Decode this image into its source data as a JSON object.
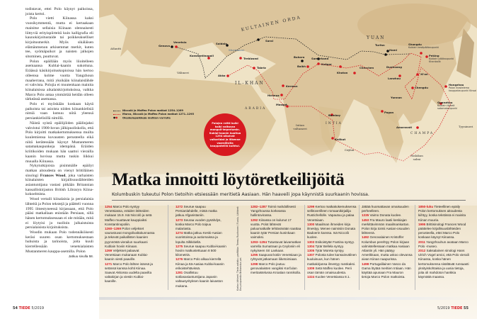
{
  "left_page": {
    "paragraphs": [
      "todistavat, ettei Polo käynyt paikoissa, joista kertoi.",
      "Polo vietti Kiinassa kaksi vuosikymmentä, mutta ei kertaakaan mainitse sellaisia Kiinaan olennaisesti liittyviä erityispiirteitä kuin kalligrafia eli kaunokirjoitustaide tai poikkeukselliset kirjoitusmerkit. Myös sikäläisen elämänmenon arkisemmat merkit, kuten tee, syömäpuikot ja naisten jalkojen sitominen, puuttuvat.",
      "Polon epäillään myös liioitelleen asemaansa Kublai-kaanin sukottuna. Eräässä käsikirjoituskopioissa hän kertoo olleensa kolme vuotta Yangzhoun maaherrana, mitä yksikään kiinalaislähde ei vahvista. Polojia ei muutenkaan mainita kiinalaisissa aikalaiskirjoituksissa, vaikka Marco Polo antaa ymmärtää heidän olleen tärkeässä asemassa.",
      "Polo ei myöskään koskaan käytä paikoista tai asioista niiden kiinankielisiä nimiä vaan kutsuu niitä yleensä persiankielisillä nimillä.",
      "Näistä syistä epäilijöiden päälinjaksi vahvistui 1900-luvun jälkipuoliskolla, että Polo kirjoitti matkakertomuksensa muilta kuulemiensa kuvausten perusteella eikä niitä kerätessään käynyt Mustanmeren satamakaupunkeja idempänä. Eräiden kriitikoiden mukaan hän saattoi vierailla kaanin hovissa mutta tuskin liikkui muualla Kiinassa."
    ],
    "para_wood_pre": "Nykytutkijoista pisimmälle epäilyt matkan aitoudesta on vienyt brittiläinen sinologi ",
    "para_wood_name": "Frances Wood",
    "para_wood_post": ", joka varhaisten kiinalaisten kirjallisuuslähteiden asiantuntijana vastasi pitkään Britannian kansalliskirjaston British Libraryn Kiina-kokoelmista.",
    "paragraphs2": [
      "Wood vertaili kiinalaisia ja persialaisia lähteitä ja Polon tekstejä ja päätteli vuonna 1995 ilmestyneessä kirjassaan, että Polo pääsi matkallaan enintään Persiaan, sillä hänen kertomuksessaan ei ole mitään, mitä ei löytyisi jo tuolloin julkaistuista persialaisista kirjoituksista.",
      "Woodin mukaan Polo todennäköisesti keräsi suuren osan kertomuksestaan huhuista ja tarinoista, joita kuuli kierrellessään venetsialaisten Mustanmeren kauppa-asemilla. Polon"
    ],
    "continued": "Jatkuu sivulla 58.",
    "footer_page": "54",
    "footer_brand": "TIEDE",
    "footer_issue": "5/2019"
  },
  "map": {
    "regions": {
      "orda": "KULTAINEN ORDA",
      "ilkhan": "IL-KHAN",
      "yuan": "YUAN",
      "arabia": "ARABIA",
      "intia": "INTIA",
      "champa": "CHAMPA"
    },
    "seas": {
      "atlantti": "Atlantti",
      "valimeri": "Välimeri",
      "mustameri": "Mustameri",
      "intian": "Intian valtameri",
      "tyynimeri": "Tyynimeri",
      "malakan": "Malakan salmi"
    },
    "cities": {
      "genova": "Genova",
      "venetsia": "Venetsia",
      "soldaia": "Soldaia",
      "konstantinopoli": "Konstantinopoli",
      "trebizond": "Trebizond",
      "tabriz": "Tabriz",
      "akko": "Akko",
      "sarai": "Sarai",
      "buhara": "Buhara",
      "samarkand": "Samarkand",
      "balkh": "Balkh",
      "kasgar": "Kašgar",
      "khotan": "Khotan",
      "cherchen": "Cherchen",
      "dunhuang": "Dunhuang",
      "lanzhou": "Lanzhou",
      "turfan": "Turfan",
      "hami": "Hami",
      "kerman": "Kerman",
      "hormuz": "Hormuz",
      "masqat": "Masqat",
      "bombay": "Bombay",
      "kalikut": "Kalikut",
      "ceylon": "Ceylon",
      "pagan": "Pagan",
      "yunnan": "Yunnan",
      "chengdu": "Chengdu",
      "xian": "Xi'an",
      "amaravati": "Amaravati",
      "shangdu": "Shangdu",
      "shangdu_sub": "Kublain kesäpääkaupunki",
      "peking": "Peking",
      "peking_sub": "Kublain pääkaupunki Khanbalik",
      "hangzhou": "Hangzhou",
      "hangzhou_sub": "Polon ihastelema kauppakaupunki Kinsai",
      "quanzhou": "Quanzhou",
      "quanzhou_sub": "Kublain tärkeä satamakaupunki"
    },
    "legend": [
      "Niccolò ja Maffeo Polon matkat 1254–1269",
      "Marco, Niccolò ja Maffeo Polon matkat 1271–1295",
      "Oleskelupaikkoja matkan varrella"
    ],
    "callout": "Polojen reitti kulki halki valtavan mongoli-imperiumin. Kublai-kaanin kuoltua 1294 alkoivat valtariidat ja liikenne vaarallisilla kauppateillä kuihtui.",
    "colors": {
      "route_red": "#d71920",
      "route_black": "#222222",
      "land": "#d8c094",
      "sea": "#efe3c6"
    }
  },
  "headline": "Matka innoitti löytöretkeilijöitä",
  "subhead": "Kolumbuskin tukeutui Polon tietoihin etsiessään meritietä Aasiaan. Hän haaveili jopa käynnistä suurkaanin hovissa.",
  "credit": "Kartan lähteet: Tiede-arkisto; grafiikka: Teemu Ruohonen / Fundu. Lähteet: Encyclopaedia Britannica ym.",
  "timeline": [
    [
      {
        "y": "1254",
        "t": "Marco Polo syntyy Venetsiassa, eräiden lähteiden mukaan 15.9. Isä Niccolò ja setä Maffeo muuttavat kauppiaiksi Konstantinopoliin."
      },
      {
        "y": "1260–1269",
        "t": "Polon veljekset vaurastuvat mongolivaltakunnassa ja tekevät paikallisten kaanien pyynnöstä vierailun suurkaani Kublain hoviin Kiinaan."
      },
      {
        "y": "1269",
        "t": "Veljekset palaavat Venetsiaan mukanaan Kublai-kaanin viesti paaville."
      },
      {
        "y": "1271",
        "t": "Marco Polo lähtee isänsä ja setänsä kanssa kohti Kiinaa. Saavat Akkossa uudelta paavilta valtakirjan ja viestin Kublai-kaanille."
      }
    ],
    [
      {
        "y": "1272",
        "t": "Seurue saapuu Persianlahdelle, mistä matka jatkuu Afganistaniin."
      },
      {
        "y": "1273",
        "t": "Seuraa vuoden pysähdys, koska Marco Polo toipuu malariasta."
      },
      {
        "y": "1274",
        "t": "Matka jatkuu Keski-Aasian vuoristoissa ja autiomaissa ja lopulta Silkkitiellä."
      },
      {
        "y": "1275",
        "t": "Seurue saapuu Kublai-kaanin hoviin matkustettuaan 8 500 kilometriä."
      },
      {
        "y": "1276",
        "t": "Marco Polo alkaa kierrellä Kiinaa ja Itä-Aasiaa Kublai-kaanin erikoistehtävissä."
      },
      {
        "y": "1281",
        "t": "Osallistuu sotilasasiantuntijana Japanin valtausyrityksen kaanin laivaston mukana."
      }
    ],
    [
      {
        "y": "1282–1287",
        "t": "Toimii mahdollisesti Yangzhoussa korkeassa hallintovirassa."
      },
      {
        "y": "1292",
        "t": "Kiinassa on kulunut 17 vuotta. Polot lähtevät paluumatkalle tehtävänään saattaa kaanin tytär Persian kuninkaan vaimoksi."
      },
      {
        "y": "1293–1294",
        "t": "Tutustuvat laivamatkan varrella Sumatraan ja Ceyloniin eli nykyiseen Sri Lankaan."
      },
      {
        "y": "1295",
        "t": "Saapuvat kotiin Venetsiaan ja ryhtyvät jatkamaan liiketoimiaan."
      },
      {
        "y": "1298",
        "t": "Marco Polo joutuu genovalaisten vangiksi Korčulan meritaistelussa Kroatian rannikolla."
      }
    ],
    [
      {
        "y": "1299",
        "t": "Kertoo matkakokemuksensa sellitoverilleen romaanikirjailija Rustichellolle. Vapautuu ja palaa Venetsiaan."
      },
      {
        "y": "1300",
        "t": "Maailman ihmeiden kirja ilmestyy. Menee naimisiin Donata Badoerin kanssa. Isä Niccolò kuolee."
      },
      {
        "y": "1303",
        "t": "Esikoistytär Fantina syntyy."
      },
      {
        "y": "1304",
        "t": "Tytär Bellela syntyy."
      },
      {
        "y": "1305",
        "t": "Tytär Moreta syntyy."
      },
      {
        "y": "1307",
        "t": "Polosta tulee kansainvälinen kuuluisuus, kun hänen matkakirjansa ilmestyy ranskaksi."
      },
      {
        "y": "1309",
        "t": "Setä Maffeo kuolee. Perii osan tämän omaisuudesta."
      },
      {
        "y": "1324",
        "t": "Kuolee Venetsiassa 8.1."
      }
    ],
    [
      {
        "y": "",
        "t": "Jättää huomattavan omaisuuden perheelleen."
      },
      {
        "y": "1335",
        "t": "Vaimo Donata kuolee."
      },
      {
        "y": "1453",
        "t": "Fra Mauro laatii keskiajan merkittävimmän maailmankartan. Polon kirja toimii Aasian-osuuden lähteenä."
      },
      {
        "y": "1492",
        "t": "Genovalainen Kristoffer Kolumbus perehtyy Polon kirjaan valmistellessaan matkaa Aasiaan Atlantin yli. Hän päätyy Amerikkaan, mutta uskoo olevansa aivan Kiinan naapurissa."
      },
      {
        "y": "1498",
        "t": "Portugalilainen Vasco da Gama löytää meritien Intiaan. Hän käyttää apunaan Fra Mauron tietoja Marco Polon matkoista."
      }
    ],
    [
      {
        "y": "1850-luku",
        "t": "Tieteellinen epäily Polon kertomuksen aitoudesta kiihtyy, koska tekstissä ei mainita Kiinan muuria."
      },
      {
        "y": "1995",
        "t": "Brittisinologi Frances Wood päättelee kirjallisuuslähteiden perusteella, ettei Marco Polo koskaan käynyt Kiinassa."
      },
      {
        "y": "2011",
        "t": "Yangzhouhun avataan Marco Polo -museo."
      },
      {
        "y": "2012",
        "t": "Saksalainen sinologi Hans Ulrich Vogel arvioi, että Polo vieraili Kiinassa, koska hänen kertomuksensa sisältävät runsaasti yksityiskohtaisia ja uusia tietoja, joita oli mahdoton hankkia käymättä maassa."
      }
    ]
  ],
  "right_footer": {
    "issue": "5/2019",
    "brand": "TIEDE",
    "page": "55"
  }
}
